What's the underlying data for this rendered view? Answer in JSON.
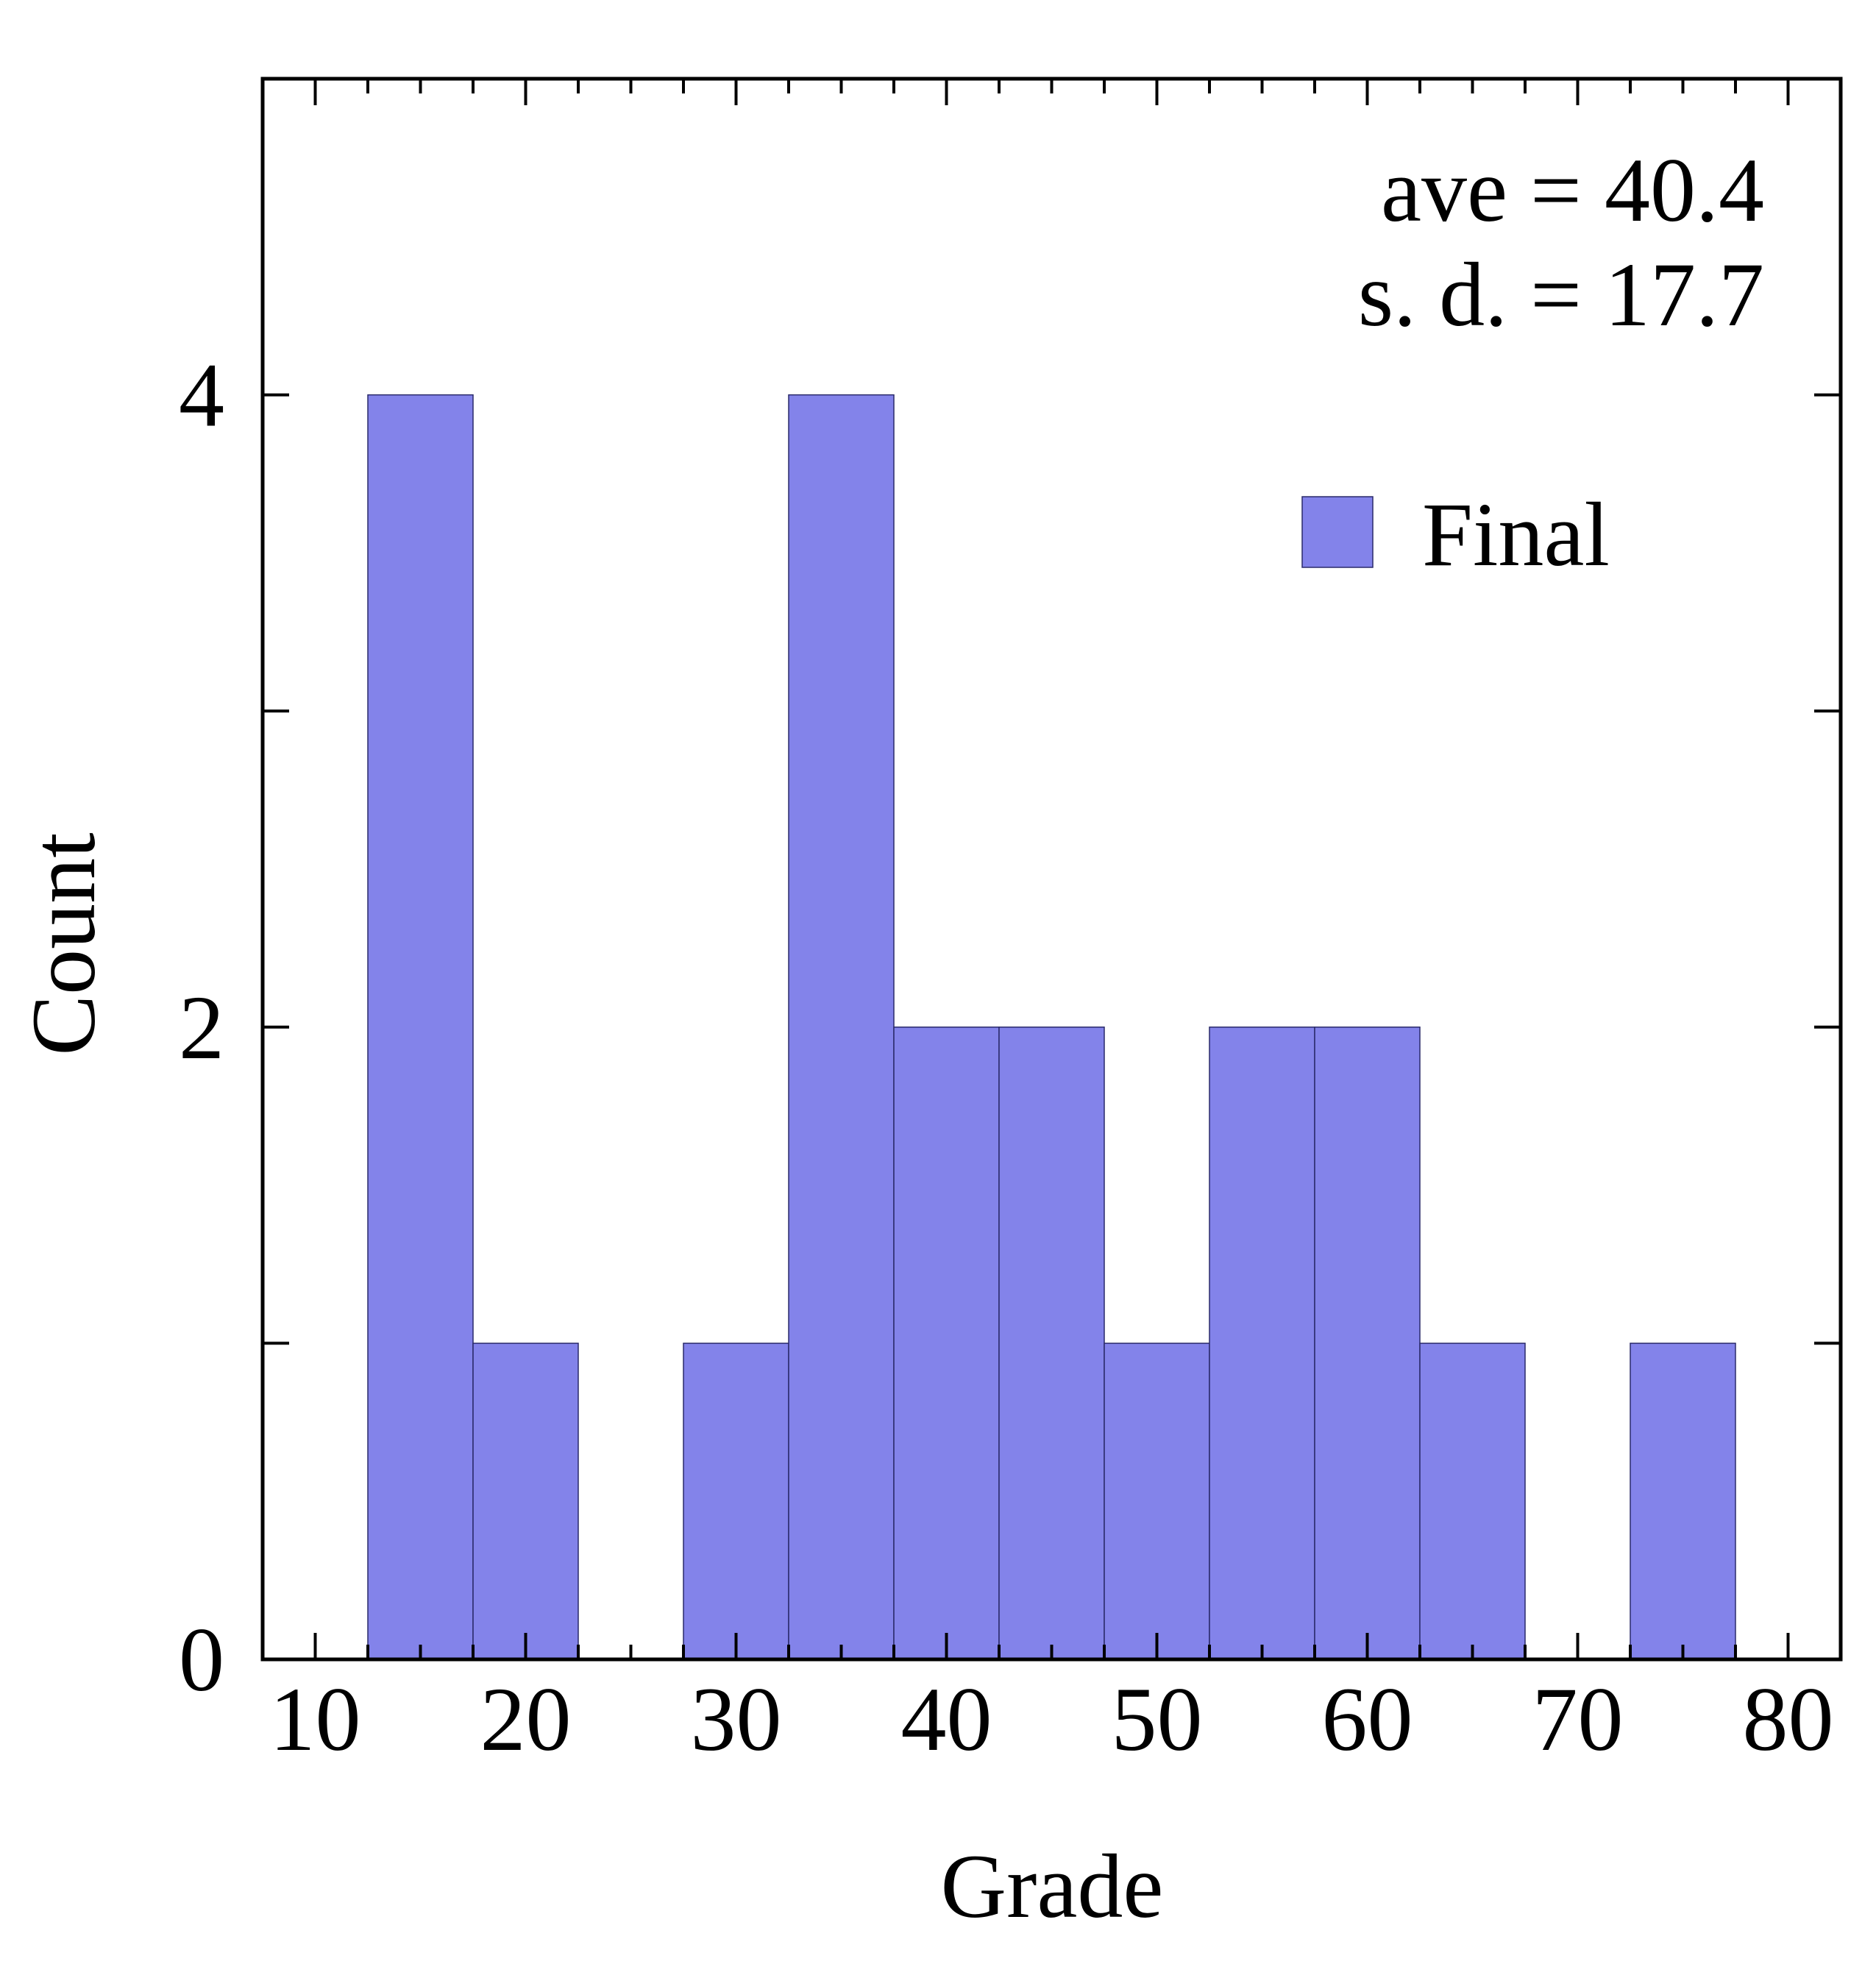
{
  "chart_data": {
    "type": "bar",
    "xlabel": "Grade",
    "ylabel": "Count",
    "xlim": [
      7.5,
      82.5
    ],
    "ylim": [
      0,
      5
    ],
    "x_major_ticks": [
      10,
      20,
      30,
      40,
      50,
      60,
      70,
      80
    ],
    "x_minor_step": 2.5,
    "y_major_ticks": [
      0,
      2,
      4
    ],
    "y_minor_ticks": [
      1,
      3
    ],
    "bin_width": 5,
    "series": [
      {
        "name": "Final",
        "bin_starts": [
          12.5,
          17.5,
          22.5,
          27.5,
          32.5,
          37.5,
          42.5,
          47.5,
          52.5,
          57.5,
          62.5,
          67.5,
          72.5
        ],
        "values": [
          4,
          1,
          0,
          1,
          4,
          2,
          2,
          1,
          2,
          2,
          1,
          0,
          1
        ]
      }
    ],
    "annotations": {
      "ave": "ave = 40.4",
      "sd": "s. d. = 17.7"
    },
    "legend_position": "top-right",
    "bar_color": "#8383ea",
    "bar_edge_color": "#2a2a6a",
    "legend_text_color": "#0000cc",
    "grid": false
  }
}
